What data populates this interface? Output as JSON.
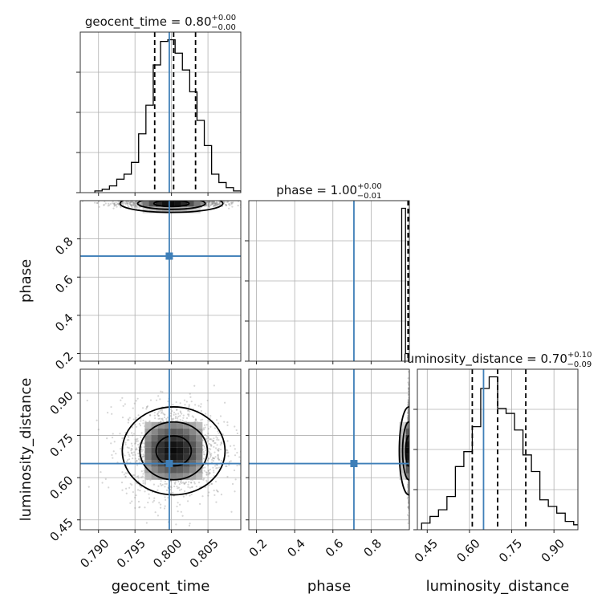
{
  "chart_data": {
    "type": "corner",
    "parameters": [
      {
        "name": "geocent_time",
        "title": "geocent_time = 0.80",
        "title_plus": "+0.00",
        "title_minus": "−0.00",
        "axis_label": "geocent_time",
        "range": [
          0.7875,
          0.8095
        ],
        "ticks": [
          0.79,
          0.795,
          0.8,
          0.805
        ],
        "tick_labels": [
          "0.790",
          "0.795",
          "0.800",
          "0.805"
        ],
        "truth": 0.7997,
        "quantiles": [
          0.7977,
          0.8003,
          0.8033
        ],
        "histogram": {
          "edges": [
            0.7895,
            0.7905,
            0.7915,
            0.7925,
            0.7935,
            0.7945,
            0.7955,
            0.7965,
            0.7975,
            0.7985,
            0.7995,
            0.8005,
            0.8015,
            0.8025,
            0.8035,
            0.8045,
            0.8055,
            0.8065,
            0.8075,
            0.8085,
            0.8095
          ],
          "counts": [
            1,
            2,
            4,
            8,
            11,
            18,
            35,
            52,
            76,
            90,
            91,
            83,
            73,
            60,
            43,
            28,
            11,
            6,
            3,
            1
          ]
        }
      },
      {
        "name": "phase",
        "title": "phase = 1.00",
        "title_plus": "+0.00",
        "title_minus": "−0.01",
        "axis_label": "phase",
        "range": [
          0.16,
          1.0
        ],
        "ticks": [
          0.2,
          0.4,
          0.6,
          0.8
        ],
        "tick_labels": [
          "0.2",
          "0.4",
          "0.6",
          "0.8"
        ],
        "truth": 0.71,
        "quantiles": [
          0.993,
          0.997,
          0.999
        ],
        "histogram": {
          "edges": [
            0.96,
            0.98,
            1.0
          ],
          "counts": [
            100,
            5
          ]
        }
      },
      {
        "name": "luminosity_distance",
        "title": "luminosity_distance = 0.70",
        "title_plus": "+0.10",
        "title_minus": "−0.09",
        "axis_label": "luminosity_distance",
        "range": [
          0.415,
          0.985
        ],
        "ticks": [
          0.45,
          0.6,
          0.75,
          0.9
        ],
        "tick_labels": [
          "0.45",
          "0.60",
          "0.75",
          "0.90"
        ],
        "truth": 0.65,
        "quantiles": [
          0.61,
          0.7,
          0.8
        ],
        "histogram": {
          "edges": [
            0.43,
            0.46,
            0.49,
            0.52,
            0.55,
            0.58,
            0.61,
            0.64,
            0.67,
            0.7,
            0.73,
            0.76,
            0.79,
            0.82,
            0.85,
            0.88,
            0.91,
            0.94,
            0.97,
            1.0
          ],
          "counts": [
            4,
            8,
            12,
            20,
            38,
            47,
            62,
            85,
            92,
            73,
            70,
            60,
            45,
            35,
            18,
            14,
            10,
            5,
            3
          ]
        }
      }
    ],
    "panels_2d": [
      {
        "x": "geocent_time",
        "y": "phase",
        "truth": [
          0.7997,
          0.71
        ],
        "posterior_center": [
          0.8,
          0.985
        ],
        "posterior_spread": [
          0.0035,
          0.01
        ]
      },
      {
        "x": "geocent_time",
        "y": "luminosity_distance",
        "truth": [
          0.7997,
          0.65
        ],
        "posterior_center": [
          0.8003,
          0.695
        ],
        "posterior_spread": [
          0.0035,
          0.085
        ]
      },
      {
        "x": "phase",
        "y": "luminosity_distance",
        "truth": [
          0.71,
          0.65
        ],
        "posterior_center": [
          0.998,
          0.695
        ],
        "posterior_spread": [
          0.005,
          0.085
        ]
      }
    ],
    "grid": true,
    "colors": {
      "truth": "#3f7fb8",
      "histogram": "#000000",
      "quantile": "#000000",
      "scatter": "#8a8a8a",
      "density": "#000000"
    }
  }
}
